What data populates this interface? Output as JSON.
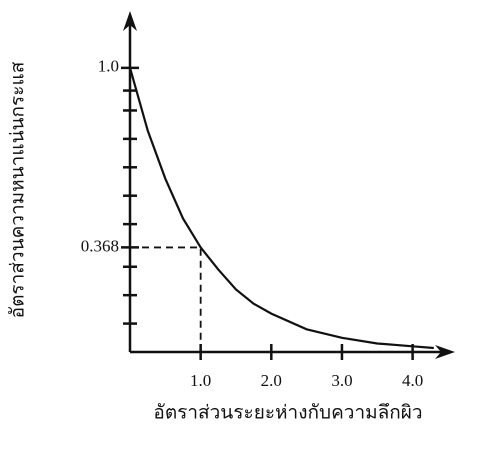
{
  "chart_data": {
    "type": "line",
    "x_label": "อัตราส่วนระยะห่างกับความลึกผิว",
    "y_label": "อัตราส่วนความหนาแน่นกระแส",
    "series": [
      {
        "color": "#111111",
        "x": [
          0,
          0.25,
          0.5,
          0.75,
          1.0,
          1.25,
          1.5,
          1.75,
          2.0,
          2.5,
          3.0,
          3.5,
          4.0,
          4.3
        ],
        "values": [
          1.0,
          0.78,
          0.61,
          0.47,
          0.368,
          0.29,
          0.22,
          0.17,
          0.135,
          0.08,
          0.05,
          0.03,
          0.02,
          0.014
        ]
      }
    ],
    "xlim": [
      0,
      4.6
    ],
    "ylim": [
      0,
      1.2
    ],
    "xticks": [
      {
        "value": 1,
        "label": "1.0"
      },
      {
        "value": 2,
        "label": "2.0"
      },
      {
        "value": 3,
        "label": "3.0"
      },
      {
        "value": 4,
        "label": "4.0"
      }
    ],
    "yticks": [
      {
        "value": 1,
        "label": "1.0"
      },
      0.368
    ],
    "y_minor_ticks": [
      0.1,
      0.2,
      0.3,
      0.45,
      0.55,
      0.65,
      0.75,
      0.85,
      0.92
    ],
    "grid": false
  }
}
